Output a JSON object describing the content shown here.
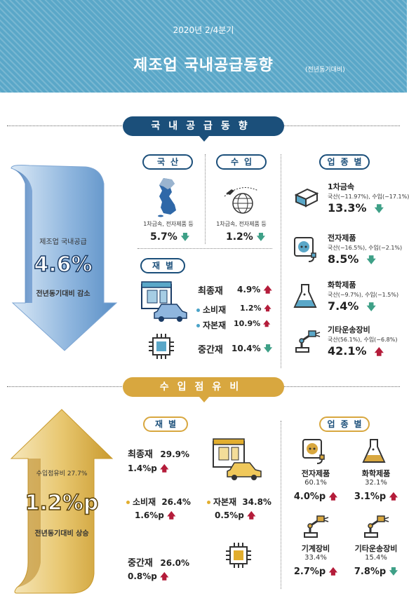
{
  "header": {
    "period": "2020년 2/4분기",
    "title": "제조업 국내공급동향",
    "subtitle": "(전년동기대비)"
  },
  "supply": {
    "banner": "국내공급동향",
    "arrow": {
      "label": "제조업 국내공급",
      "value": "4.6%",
      "note": "전년동기대비 감소"
    },
    "domestic": {
      "pill": "국산",
      "caption": "1차금속, 전자제품 등",
      "value": "5.7%",
      "direction": "down"
    },
    "imports": {
      "pill": "수입",
      "caption": "1차금속, 전자제품 등",
      "value": "1.2%",
      "direction": "down"
    },
    "goods": {
      "pill": "재별",
      "final": {
        "label": "최종재",
        "value": "4.9%",
        "direction": "up"
      },
      "consumer": {
        "label": "소비재",
        "value": "1.2%",
        "direction": "up"
      },
      "capital": {
        "label": "자본재",
        "value": "10.9%",
        "direction": "up"
      },
      "intermediate": {
        "label": "중간재",
        "value": "10.4%",
        "direction": "down"
      }
    },
    "industry": {
      "pill": "업종별",
      "items": [
        {
          "name": "1차금속",
          "detail": "국산(−11.97%), 수입(−17.1%)",
          "value": "13.3%",
          "direction": "down",
          "icon": "metal-icon"
        },
        {
          "name": "전자제품",
          "detail": "국산(−16.5%), 수입(−2.1%)",
          "value": "8.5%",
          "direction": "down",
          "icon": "plug-icon"
        },
        {
          "name": "화학제품",
          "detail": "국산(−9.7%), 수입(−1.5%)",
          "value": "7.4%",
          "direction": "down",
          "icon": "flask-icon"
        },
        {
          "name": "기타운송장비",
          "detail": "국산(56.1%), 수입(−6.8%)",
          "value": "42.1%",
          "direction": "up",
          "icon": "robot-arm-icon"
        }
      ]
    }
  },
  "import_share": {
    "banner": "수입점유비",
    "arrow": {
      "label": "수입점유비 27.7%",
      "value": "1.2%p",
      "note": "전년동기대비 상승"
    },
    "goods": {
      "pill": "재별",
      "final": {
        "label": "최종재",
        "share": "29.9%",
        "change": "1.4%p",
        "direction": "up"
      },
      "consumer": {
        "label": "소비재",
        "share": "26.4%",
        "change": "1.6%p",
        "direction": "up"
      },
      "capital": {
        "label": "자본재",
        "share": "34.8%",
        "change": "0.5%p",
        "direction": "up"
      },
      "intermediate": {
        "label": "중간재",
        "share": "26.0%",
        "change": "0.8%p",
        "direction": "up"
      }
    },
    "industry": {
      "pill": "업종별",
      "items": [
        {
          "name": "전자제품",
          "share": "60.1%",
          "change": "4.0%p",
          "direction": "up",
          "icon": "plug-icon"
        },
        {
          "name": "화학제품",
          "share": "32.1%",
          "change": "3.1%p",
          "direction": "up",
          "icon": "flask-icon"
        },
        {
          "name": "기계장비",
          "share": "33.4%",
          "change": "2.7%p",
          "direction": "up",
          "icon": "robot-arm-icon"
        },
        {
          "name": "기타운송장비",
          "share": "15.4%",
          "change": "7.8%p",
          "direction": "down",
          "icon": "robot-arm-icon"
        }
      ]
    }
  },
  "colors": {
    "header": "#5aa7c8",
    "navy": "#1b4f7a",
    "gold": "#d8a73f",
    "up": "#b41c3a",
    "down": "#3ea087"
  }
}
